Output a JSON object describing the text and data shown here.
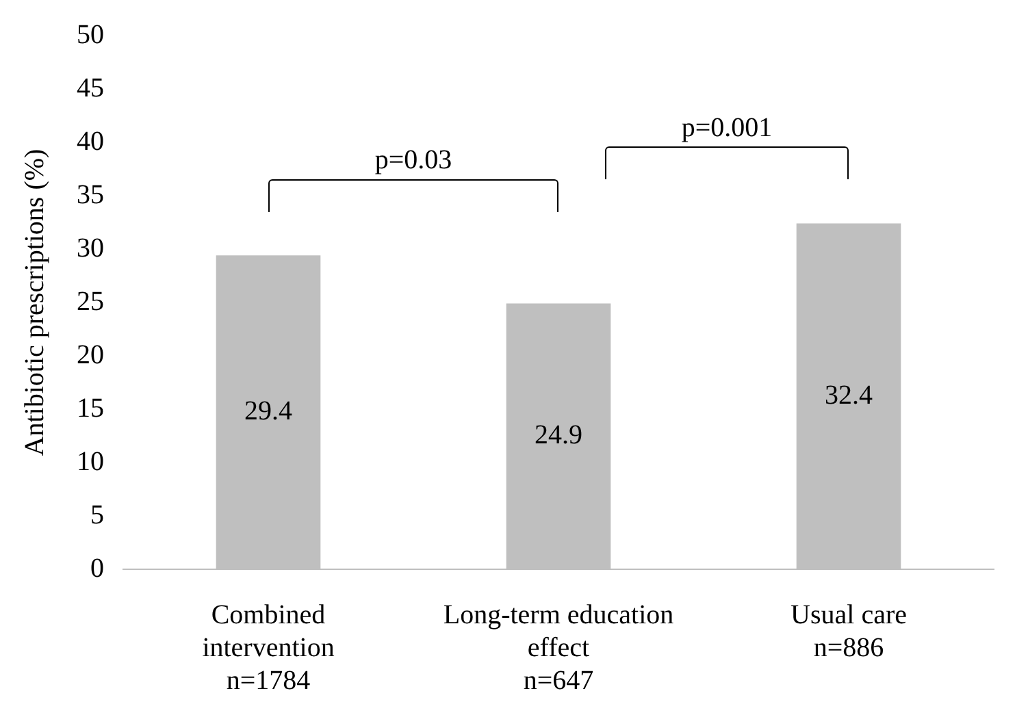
{
  "chart_data": {
    "type": "bar",
    "ylabel": "Antibiotic prescriptions (%)",
    "categories": [
      "Combined\nintervention\nn=1784",
      "Long-term education\neffect\nn=647",
      "Usual care\nn=886"
    ],
    "values": [
      29.4,
      24.9,
      32.4
    ],
    "color": "#bfbfbf",
    "ylim": [
      0,
      50
    ],
    "yticks": [
      0,
      5,
      10,
      15,
      20,
      25,
      30,
      35,
      40,
      45,
      50
    ],
    "grid": false,
    "legend": false,
    "data_labels": true,
    "annotations": [
      "p=0.03",
      "p=0.001"
    ]
  }
}
